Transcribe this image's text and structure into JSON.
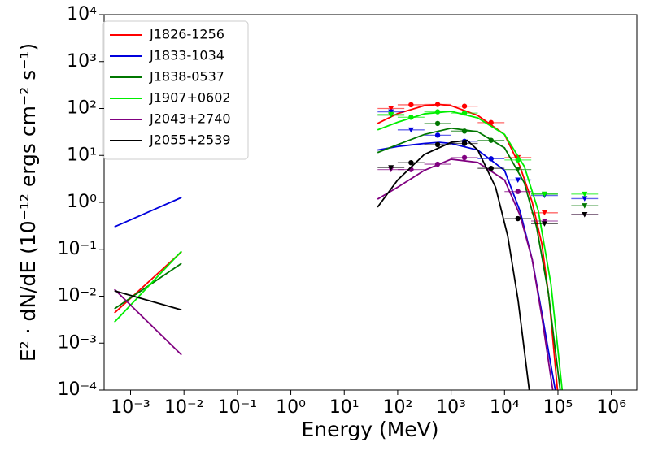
{
  "chart_data": {
    "type": "line",
    "xlabel": "Energy (MeV)",
    "ylabel": "E² · dN/dE (10⁻¹² ergs cm⁻² s⁻¹)",
    "xscale": "log",
    "yscale": "log",
    "xlim": [
      0.00032,
      3000000
    ],
    "ylim": [
      0.0001,
      10000
    ],
    "xticks": [
      {
        "value": 0.001,
        "label": "10⁻³"
      },
      {
        "value": 0.01,
        "label": "10⁻²"
      },
      {
        "value": 0.1,
        "label": "10⁻¹"
      },
      {
        "value": 1,
        "label": "10⁰"
      },
      {
        "value": 10,
        "label": "10¹"
      },
      {
        "value": 100,
        "label": "10²"
      },
      {
        "value": 1000,
        "label": "10³"
      },
      {
        "value": 10000,
        "label": "10⁴"
      },
      {
        "value": 100000,
        "label": "10⁵"
      },
      {
        "value": 1000000,
        "label": "10⁶"
      }
    ],
    "yticks": [
      {
        "value": 0.0001,
        "label": "10⁻⁴"
      },
      {
        "value": 0.001,
        "label": "10⁻³"
      },
      {
        "value": 0.01,
        "label": "10⁻²"
      },
      {
        "value": 0.1,
        "label": "10⁻¹"
      },
      {
        "value": 1,
        "label": "10⁰"
      },
      {
        "value": 10,
        "label": "10¹"
      },
      {
        "value": 100,
        "label": "10²"
      },
      {
        "value": 1000,
        "label": "10³"
      },
      {
        "value": 10000,
        "label": "10⁴"
      }
    ],
    "legend": "upper left",
    "series": [
      {
        "name": "J1826-1256",
        "color": "#ff0000",
        "x": [
          0.0005,
          0.009,
          null,
          42,
          100,
          316,
          600,
          1000,
          3160,
          10000,
          19500,
          33000,
          50000,
          69000,
          98000
        ],
        "values": [
          0.0044,
          0.088,
          null,
          48,
          78,
          115,
          122,
          115,
          71,
          28,
          5.8,
          1.0,
          0.13,
          0.008,
          0.0001
        ],
        "points": {
          "x": [
            178,
            560,
            1780,
            5600
          ],
          "values": [
            120,
            122,
            112,
            50
          ]
        },
        "upper_limits": {
          "x": [
            75,
            17800,
            56000
          ],
          "values": [
            100,
            9,
            0.6
          ]
        }
      },
      {
        "name": "J1833-1034",
        "color": "#0000dd",
        "x": [
          0.0005,
          0.009,
          null,
          42,
          100,
          316,
          600,
          1000,
          3160,
          10000,
          19500,
          33000,
          50000,
          89000
        ],
        "values": [
          0.3,
          1.27,
          null,
          13,
          15.5,
          18,
          19,
          18,
          13,
          4.8,
          0.65,
          0.06,
          0.0044,
          0.0001
        ],
        "points": {
          "x": [
            560,
            1780,
            5600
          ],
          "values": [
            27,
            20,
            8.5
          ]
        },
        "upper_limits": {
          "x": [
            75,
            178,
            17800,
            56000,
            316000
          ],
          "values": [
            85,
            35,
            3,
            1.4,
            1.2
          ]
        }
      },
      {
        "name": "J1838-0537",
        "color": "#007700",
        "x": [
          0.0005,
          0.009,
          null,
          42,
          100,
          316,
          1000,
          3160,
          10000,
          23500,
          40000,
          66000,
          110000
        ],
        "values": [
          0.0054,
          0.05,
          null,
          11.5,
          17,
          28,
          38,
          32,
          14.5,
          2.6,
          0.29,
          0.012,
          0.0001
        ],
        "points": {
          "x": [
            560,
            1780,
            5600
          ],
          "values": [
            48,
            33,
            21
          ]
        },
        "upper_limits": {
          "x": [
            75,
            17800,
            56000,
            316000
          ],
          "values": [
            72,
            5,
            1.5,
            0.85
          ]
        }
      },
      {
        "name": "J1907+0602",
        "color": "#00ee00",
        "x": [
          0.0005,
          0.009,
          null,
          42,
          100,
          316,
          1000,
          3160,
          10000,
          23500,
          43000,
          74000,
          120000
        ],
        "values": [
          0.0028,
          0.091,
          null,
          35,
          51,
          77,
          87,
          63,
          28,
          5.8,
          0.65,
          0.018,
          0.0001
        ],
        "points": {
          "x": [
            178,
            560,
            1780,
            17800
          ],
          "values": [
            65,
            85,
            80,
            8
          ]
        },
        "upper_limits": {
          "x": [
            75,
            56000,
            316000
          ],
          "values": [
            75,
            1.5,
            1.5
          ]
        }
      },
      {
        "name": "J2043+2740",
        "color": "#800080",
        "x": [
          0.0005,
          0.009,
          null,
          42,
          100,
          316,
          1000,
          3160,
          10000,
          19500,
          33000,
          50000,
          80000
        ],
        "values": [
          0.014,
          0.00056,
          null,
          1.17,
          2.1,
          4.8,
          8.3,
          7.1,
          3,
          0.53,
          0.06,
          0.0036,
          0.0001
        ],
        "points": {
          "x": [
            178,
            560,
            1780,
            17800
          ],
          "values": [
            5,
            6.5,
            9,
            1.7
          ]
        },
        "upper_limits": {
          "x": [
            75,
            56000,
            316000
          ],
          "values": [
            5,
            0.4,
            0.55
          ]
        }
      },
      {
        "name": "J2055+2539",
        "color": "#000000",
        "x": [
          0.0005,
          0.009,
          null,
          42,
          100,
          316,
          1000,
          2000,
          3160,
          6800,
          11500,
          18000,
          29000
        ],
        "values": [
          0.013,
          0.0051,
          null,
          0.79,
          3,
          10.5,
          19,
          21,
          13,
          2.1,
          0.19,
          0.008,
          0.0001
        ],
        "points": {
          "x": [
            178,
            560,
            1780,
            5600,
            17800
          ],
          "values": [
            7,
            17,
            18,
            5.3,
            0.45
          ]
        },
        "upper_limits": {
          "x": [
            75,
            56000,
            316000
          ],
          "values": [
            5.5,
            0.35,
            0.55
          ]
        }
      }
    ]
  }
}
